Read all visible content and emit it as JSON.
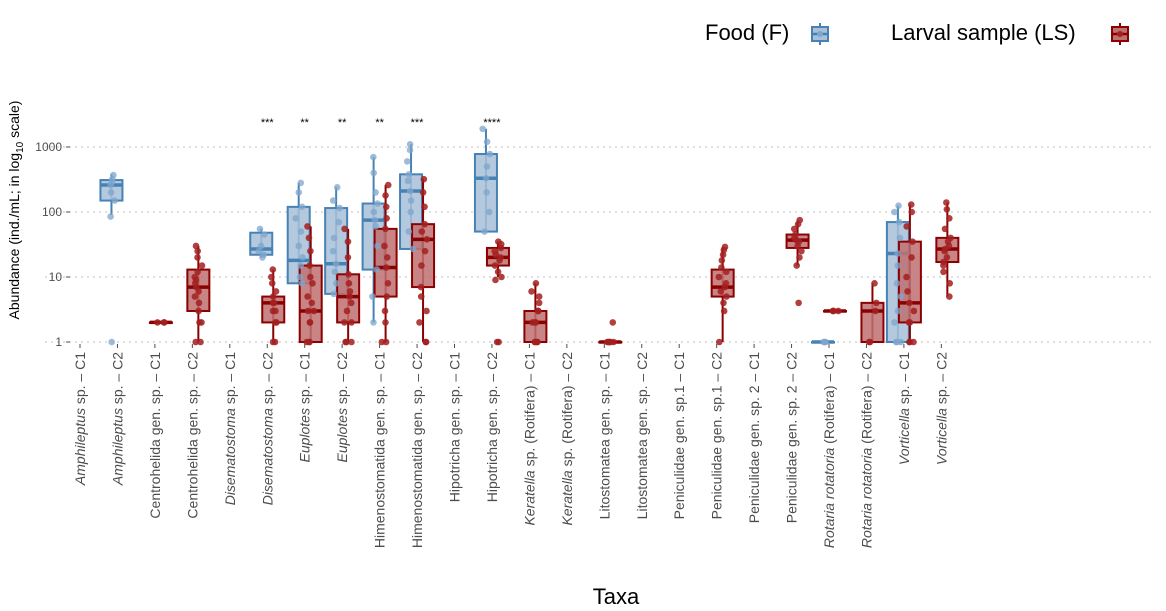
{
  "chart_data": {
    "type": "box",
    "xlabel": "Taxa",
    "ylabel_parts": [
      "Abundance (ind./mL; in log",
      "10",
      " scale)"
    ],
    "yscale": "log10",
    "ylim": [
      1,
      2000
    ],
    "yticks": [
      1,
      10,
      100,
      1000
    ],
    "ytick_labels": [
      "1",
      "10",
      "100",
      "1000"
    ],
    "grid": "horizontal dotted",
    "legend": {
      "placement": "top-right",
      "entries": [
        {
          "label": "Food",
          "code": "(F)",
          "series": "F",
          "color": "#4682b4"
        },
        {
          "label": "Larval sample",
          "code": "(LS)",
          "series": "LS",
          "color": "#8b0000"
        }
      ]
    },
    "categories": [
      {
        "pre": "",
        "it": "Amphileptus",
        "post": " sp. – C1"
      },
      {
        "pre": "",
        "it": "Amphileptus",
        "post": " sp. – C2"
      },
      {
        "pre": "Centrohelida gen. sp. – C1",
        "it": "",
        "post": ""
      },
      {
        "pre": "Centrohelida gen. sp. – C2",
        "it": "",
        "post": ""
      },
      {
        "pre": "",
        "it": "Disematostoma",
        "post": " sp. – C1"
      },
      {
        "pre": "",
        "it": "Disematostoma",
        "post": " sp. – C2"
      },
      {
        "pre": "",
        "it": "Euplotes",
        "post": " sp. – C1"
      },
      {
        "pre": "",
        "it": "Euplotes",
        "post": " sp. – C2"
      },
      {
        "pre": "Himenostomatida gen. sp. – C1",
        "it": "",
        "post": ""
      },
      {
        "pre": "Himenostomatida gen. sp. – C2",
        "it": "",
        "post": ""
      },
      {
        "pre": "Hipotricha gen. sp. – C1",
        "it": "",
        "post": ""
      },
      {
        "pre": "Hipotricha gen. sp. – C2",
        "it": "",
        "post": ""
      },
      {
        "pre": "",
        "it": "Keratella",
        "post": " sp. (Rotifera) – C1"
      },
      {
        "pre": "",
        "it": "Keratella",
        "post": " sp. (Rotifera) – C2"
      },
      {
        "pre": "Litostomatea gen. sp. – C1",
        "it": "",
        "post": ""
      },
      {
        "pre": "Litostomatea gen. sp. – C2",
        "it": "",
        "post": ""
      },
      {
        "pre": "Peniculidae gen. sp.1 – C1",
        "it": "",
        "post": ""
      },
      {
        "pre": "Peniculidae gen. sp.1 – C2",
        "it": "",
        "post": ""
      },
      {
        "pre": "Peniculidae gen. sp. 2 – C1",
        "it": "",
        "post": ""
      },
      {
        "pre": "Peniculidae gen. sp. 2 – C2",
        "it": "",
        "post": ""
      },
      {
        "pre": "",
        "it": "Rotaria rotatoria",
        "post": " (Rotifera) – C1"
      },
      {
        "pre": "",
        "it": "Rotaria rotatoria",
        "post": " (Rotifera) – C2"
      },
      {
        "pre": "",
        "it": "Vorticella",
        "post": " sp. – C1"
      },
      {
        "pre": "",
        "it": "Vorticella",
        "post": " sp. – C2"
      }
    ],
    "boxes": [
      {
        "cat": 1,
        "series": "F",
        "min": 90,
        "q1": 150,
        "median": 260,
        "q3": 310,
        "max": 380,
        "points": [
          1,
          85,
          150,
          200,
          260,
          290,
          320,
          370
        ]
      },
      {
        "cat": 2,
        "series": "LS",
        "min": 2,
        "q1": 2,
        "median": 2,
        "q3": 2,
        "max": 2,
        "points": [
          2,
          2,
          2
        ]
      },
      {
        "cat": 3,
        "series": "LS",
        "min": 1,
        "q1": 3,
        "median": 7,
        "q3": 13,
        "max": 30,
        "points": [
          1,
          1,
          2,
          2,
          3,
          4,
          5,
          6,
          7,
          8,
          9,
          10,
          12,
          15,
          20,
          25,
          30
        ]
      },
      {
        "cat": 5,
        "series": "F",
        "min": 20,
        "q1": 22,
        "median": 27,
        "q3": 48,
        "max": 55,
        "points": [
          20,
          22,
          25,
          30,
          45,
          55
        ]
      },
      {
        "cat": 5,
        "series": "LS",
        "min": 1,
        "q1": 2,
        "median": 4,
        "q3": 5,
        "max": 13,
        "points": [
          1,
          1,
          2,
          2,
          3,
          3,
          4,
          4,
          5,
          6,
          8,
          10,
          13
        ]
      },
      {
        "cat": 6,
        "series": "F",
        "min": 8,
        "q1": 8,
        "median": 18,
        "q3": 120,
        "max": 280,
        "points": [
          8,
          10,
          15,
          20,
          30,
          50,
          80,
          120,
          200,
          280
        ]
      },
      {
        "cat": 6,
        "series": "LS",
        "min": 1,
        "q1": 1,
        "median": 3,
        "q3": 15,
        "max": 60,
        "points": [
          1,
          1,
          1,
          2,
          2,
          3,
          3,
          4,
          5,
          8,
          10,
          15,
          25,
          40,
          60
        ]
      },
      {
        "cat": 7,
        "series": "F",
        "min": 5.5,
        "q1": 5.5,
        "median": 16,
        "q3": 115,
        "max": 240,
        "points": [
          5.5,
          8,
          12,
          16,
          25,
          40,
          70,
          115,
          150,
          240
        ]
      },
      {
        "cat": 7,
        "series": "LS",
        "min": 1,
        "q1": 2,
        "median": 5,
        "q3": 11,
        "max": 55,
        "points": [
          1,
          1,
          1,
          2,
          2,
          3,
          4,
          5,
          6,
          8,
          11,
          20,
          35,
          55
        ]
      },
      {
        "cat": 8,
        "series": "F",
        "min": 2,
        "q1": 13,
        "median": 75,
        "q3": 135,
        "max": 700,
        "points": [
          2,
          5,
          13,
          30,
          60,
          75,
          100,
          135,
          200,
          400,
          700
        ]
      },
      {
        "cat": 8,
        "series": "LS",
        "min": 1,
        "q1": 5,
        "median": 14,
        "q3": 55,
        "max": 260,
        "points": [
          1,
          1,
          2,
          3,
          5,
          8,
          14,
          20,
          30,
          55,
          80,
          120,
          180,
          260
        ]
      },
      {
        "cat": 9,
        "series": "F",
        "min": 27,
        "q1": 27,
        "median": 210,
        "q3": 380,
        "max": 1100,
        "points": [
          27,
          50,
          100,
          150,
          210,
          300,
          380,
          600,
          900,
          1100
        ]
      },
      {
        "cat": 9,
        "series": "LS",
        "min": 1,
        "q1": 7,
        "median": 38,
        "q3": 65,
        "max": 320,
        "points": [
          1,
          1,
          2,
          3,
          5,
          7,
          15,
          25,
          38,
          50,
          65,
          120,
          200,
          320
        ]
      },
      {
        "cat": 11,
        "series": "F",
        "min": 50,
        "q1": 50,
        "median": 330,
        "q3": 780,
        "max": 1900,
        "points": [
          50,
          100,
          200,
          330,
          500,
          780,
          1200,
          1900
        ]
      },
      {
        "cat": 11,
        "series": "LS",
        "min": 10,
        "q1": 15,
        "median": 20,
        "q3": 28,
        "max": 35,
        "points": [
          1,
          1,
          9,
          10,
          12,
          15,
          18,
          20,
          22,
          25,
          28,
          32,
          35
        ]
      },
      {
        "cat": 12,
        "series": "LS",
        "min": 1,
        "q1": 1,
        "median": 2,
        "q3": 3,
        "max": 8,
        "points": [
          1,
          1,
          1,
          1,
          2,
          2,
          2,
          3,
          3,
          4,
          5,
          6,
          8
        ]
      },
      {
        "cat": 14,
        "series": "LS",
        "min": 1,
        "q1": 1,
        "median": 1,
        "q3": 1,
        "max": 1,
        "points": [
          1,
          1,
          1,
          1,
          1,
          1,
          2
        ]
      },
      {
        "cat": 17,
        "series": "LS",
        "min": 1,
        "q1": 5,
        "median": 7,
        "q3": 13,
        "max": 29,
        "points": [
          1,
          3,
          4,
          5,
          6,
          7,
          8,
          10,
          12,
          14,
          18,
          22,
          26,
          29
        ]
      },
      {
        "cat": 19,
        "series": "LS",
        "min": 15,
        "q1": 28,
        "median": 37,
        "q3": 45,
        "max": 75,
        "points": [
          4,
          15,
          20,
          25,
          30,
          35,
          37,
          40,
          45,
          55,
          65,
          75
        ]
      },
      {
        "cat": 20,
        "series": "F",
        "min": 1,
        "q1": 1,
        "median": 1,
        "q3": 1,
        "max": 1,
        "points": [
          1,
          1,
          1
        ]
      },
      {
        "cat": 20,
        "series": "LS",
        "min": 3,
        "q1": 3,
        "median": 3,
        "q3": 3,
        "max": 3,
        "points": [
          3,
          3,
          3
        ]
      },
      {
        "cat": 21,
        "series": "LS",
        "min": 1,
        "q1": 1,
        "median": 3,
        "q3": 4,
        "max": 8,
        "points": [
          1,
          1,
          3,
          4,
          8
        ]
      },
      {
        "cat": 22,
        "series": "F",
        "min": 1,
        "q1": 1,
        "median": 23,
        "q3": 70,
        "max": 125,
        "points": [
          1,
          1,
          1,
          2,
          3,
          5,
          8,
          15,
          23,
          40,
          70,
          100,
          125
        ]
      },
      {
        "cat": 22,
        "series": "LS",
        "min": 1,
        "q1": 2,
        "median": 4,
        "q3": 35,
        "max": 130,
        "points": [
          1,
          1,
          1,
          2,
          2,
          3,
          4,
          6,
          10,
          20,
          35,
          60,
          100,
          130
        ]
      },
      {
        "cat": 23,
        "series": "LS",
        "min": 5,
        "q1": 17,
        "median": 27,
        "q3": 40,
        "max": 140,
        "points": [
          5,
          8,
          12,
          15,
          17,
          20,
          25,
          27,
          30,
          35,
          40,
          55,
          80,
          110,
          140
        ]
      }
    ],
    "significance": [
      {
        "cat": 5,
        "label": "***"
      },
      {
        "cat": 6,
        "label": "**"
      },
      {
        "cat": 7,
        "label": "**"
      },
      {
        "cat": 8,
        "label": "**"
      },
      {
        "cat": 9,
        "label": "***"
      },
      {
        "cat": 11,
        "label": "****"
      }
    ]
  }
}
